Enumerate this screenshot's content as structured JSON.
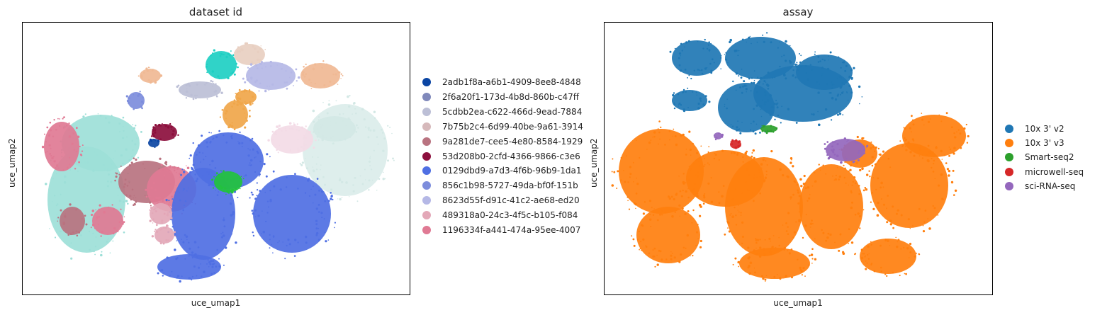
{
  "chart_data": [
    {
      "type": "scatter",
      "title": "dataset id",
      "xlabel": "uce_umap1",
      "ylabel": "uce_umap2",
      "grid": false,
      "legend_position": "right",
      "series": [
        {
          "name": "2adb1f8a-a6b1-4909-8ee8-4848",
          "color": "#0b45a3"
        },
        {
          "name": "2f6a20f1-173d-4b8d-860b-c47ff",
          "color": "#8089bb"
        },
        {
          "name": "5cdbb2ea-c622-466d-9ead-7884",
          "color": "#bcbfd6"
        },
        {
          "name": "7b75b2c4-6d99-40be-9a61-3914",
          "color": "#d6b9bb"
        },
        {
          "name": "9a281de7-cee5-4e80-8584-1929",
          "color": "#b97380"
        },
        {
          "name": "53d208b0-2cfd-4366-9866-c3e6",
          "color": "#8c0f3d"
        },
        {
          "name": "0129dbd9-a7d3-4f6b-96b9-1da1",
          "color": "#4f6fe3"
        },
        {
          "name": "856c1b98-5727-49da-bf0f-151b",
          "color": "#7d8ddc"
        },
        {
          "name": "8623d55f-d91c-41c2-ae68-ed20",
          "color": "#b5b8e6"
        },
        {
          "name": "489318a0-24c3-4f5c-b105-f084",
          "color": "#e3a8b8"
        },
        {
          "name": "1196334f-a441-474a-95ee-4007",
          "color": "#e07a94"
        }
      ]
    },
    {
      "type": "scatter",
      "title": "assay",
      "xlabel": "uce_umap1",
      "ylabel": "uce_umap2",
      "grid": false,
      "legend_position": "right",
      "series": [
        {
          "name": "10x 3' v2",
          "color": "#1f77b4"
        },
        {
          "name": "10x 3' v3",
          "color": "#ff7f0e"
        },
        {
          "name": "Smart-seq2",
          "color": "#2ca02c"
        },
        {
          "name": "microwell-seq",
          "color": "#d62728"
        },
        {
          "name": "sci-RNA-seq",
          "color": "#9467bd"
        }
      ]
    }
  ]
}
